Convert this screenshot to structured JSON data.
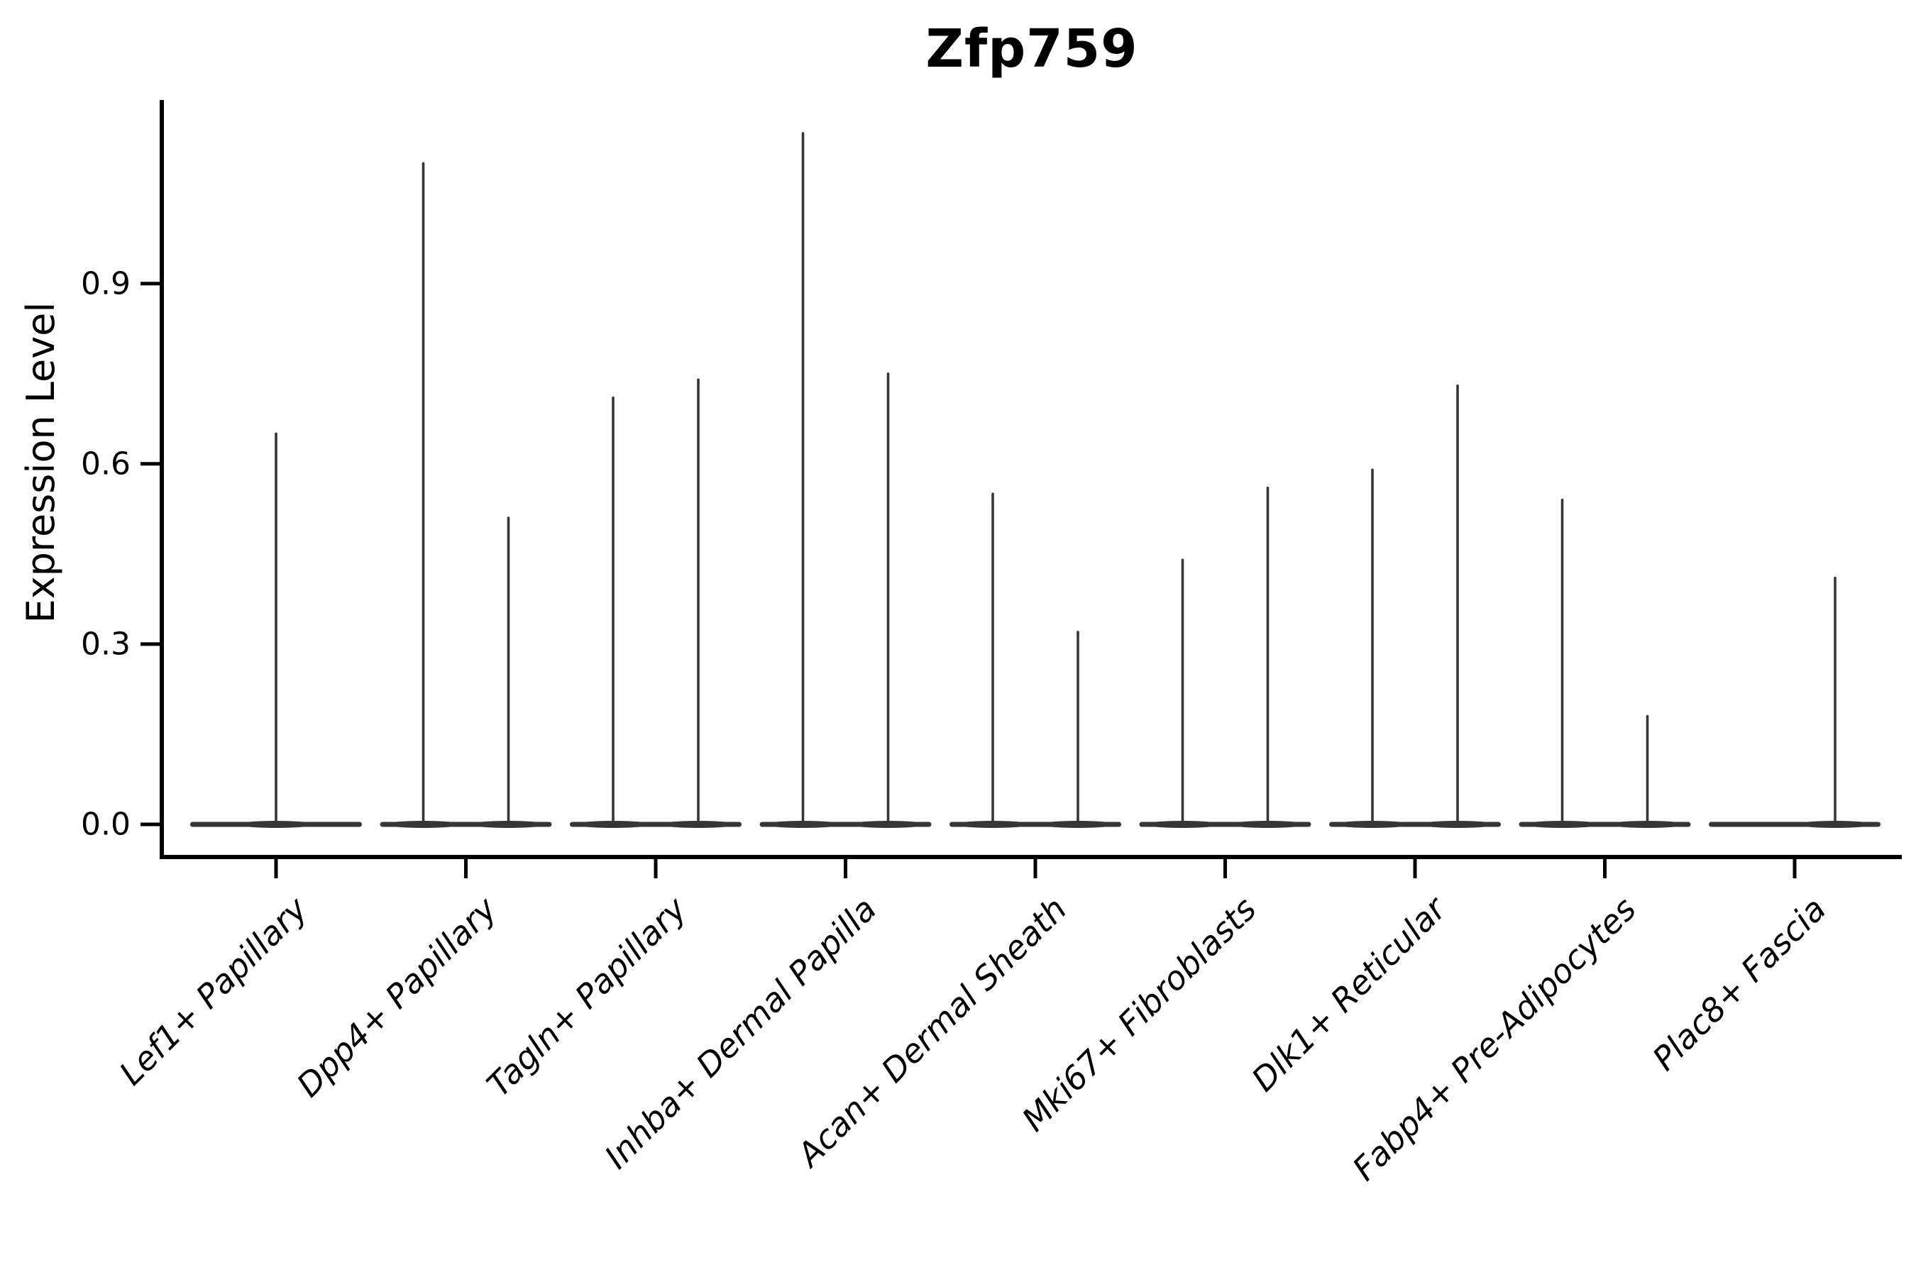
{
  "title": "Zfp759",
  "ylabel": "Expression Level",
  "chart_data": {
    "type": "violin",
    "title": "Zfp759",
    "xlabel": "",
    "ylabel": "Expression Level",
    "ytick_labels": [
      "0.0",
      "0.3",
      "0.6",
      "0.9"
    ],
    "ytick_values": [
      0.0,
      0.3,
      0.6,
      0.9
    ],
    "ylim": [
      -0.055,
      1.205
    ],
    "grid": false,
    "legend_position": "none",
    "axis_color": "#000000",
    "violin_color": "#363636",
    "categories": [
      "Lef1+ Papillary",
      "Dpp4+ Papillary",
      "Tagln+ Papillary",
      "Inhba+ Dermal Papilla",
      "Acan+ Dermal Sheath",
      "Mki67+ Fibroblasts",
      "Dlk1+ Reticular",
      "Fabp4+ Pre-Adipocytes",
      "Plac8+ Fascia"
    ],
    "series": [
      {
        "category": "Lef1+ Papillary",
        "violins": [
          {
            "side": "center",
            "offset": 0,
            "max": 0.65
          }
        ]
      },
      {
        "category": "Dpp4+ Papillary",
        "violins": [
          {
            "side": "left",
            "offset": -60,
            "max": 1.1
          },
          {
            "side": "right",
            "offset": 60,
            "max": 0.51
          }
        ]
      },
      {
        "category": "Tagln+ Papillary",
        "violins": [
          {
            "side": "left",
            "offset": -60,
            "max": 0.71
          },
          {
            "side": "right",
            "offset": 60,
            "max": 0.74
          }
        ]
      },
      {
        "category": "Inhba+ Dermal Papilla",
        "violins": [
          {
            "side": "left",
            "offset": -60,
            "max": 1.15
          },
          {
            "side": "right",
            "offset": 60,
            "max": 0.75
          }
        ]
      },
      {
        "category": "Acan+ Dermal Sheath",
        "violins": [
          {
            "side": "left",
            "offset": -60,
            "max": 0.55
          },
          {
            "side": "right",
            "offset": 60,
            "max": 0.32
          }
        ]
      },
      {
        "category": "Mki67+ Fibroblasts",
        "violins": [
          {
            "side": "left",
            "offset": -60,
            "max": 0.44
          },
          {
            "side": "right",
            "offset": 60,
            "max": 0.56
          }
        ]
      },
      {
        "category": "Dlk1+ Reticular",
        "violins": [
          {
            "side": "left",
            "offset": -60,
            "max": 0.59
          },
          {
            "side": "right",
            "offset": 60,
            "max": 0.73
          }
        ]
      },
      {
        "category": "Fabp4+ Pre-Adipocytes",
        "violins": [
          {
            "side": "left",
            "offset": -60,
            "max": 0.54
          },
          {
            "side": "right",
            "offset": 60,
            "max": 0.18
          }
        ]
      },
      {
        "category": "Plac8+ Fascia",
        "violins": [
          {
            "side": "right",
            "offset": 57,
            "max": 0.41
          }
        ]
      }
    ]
  }
}
